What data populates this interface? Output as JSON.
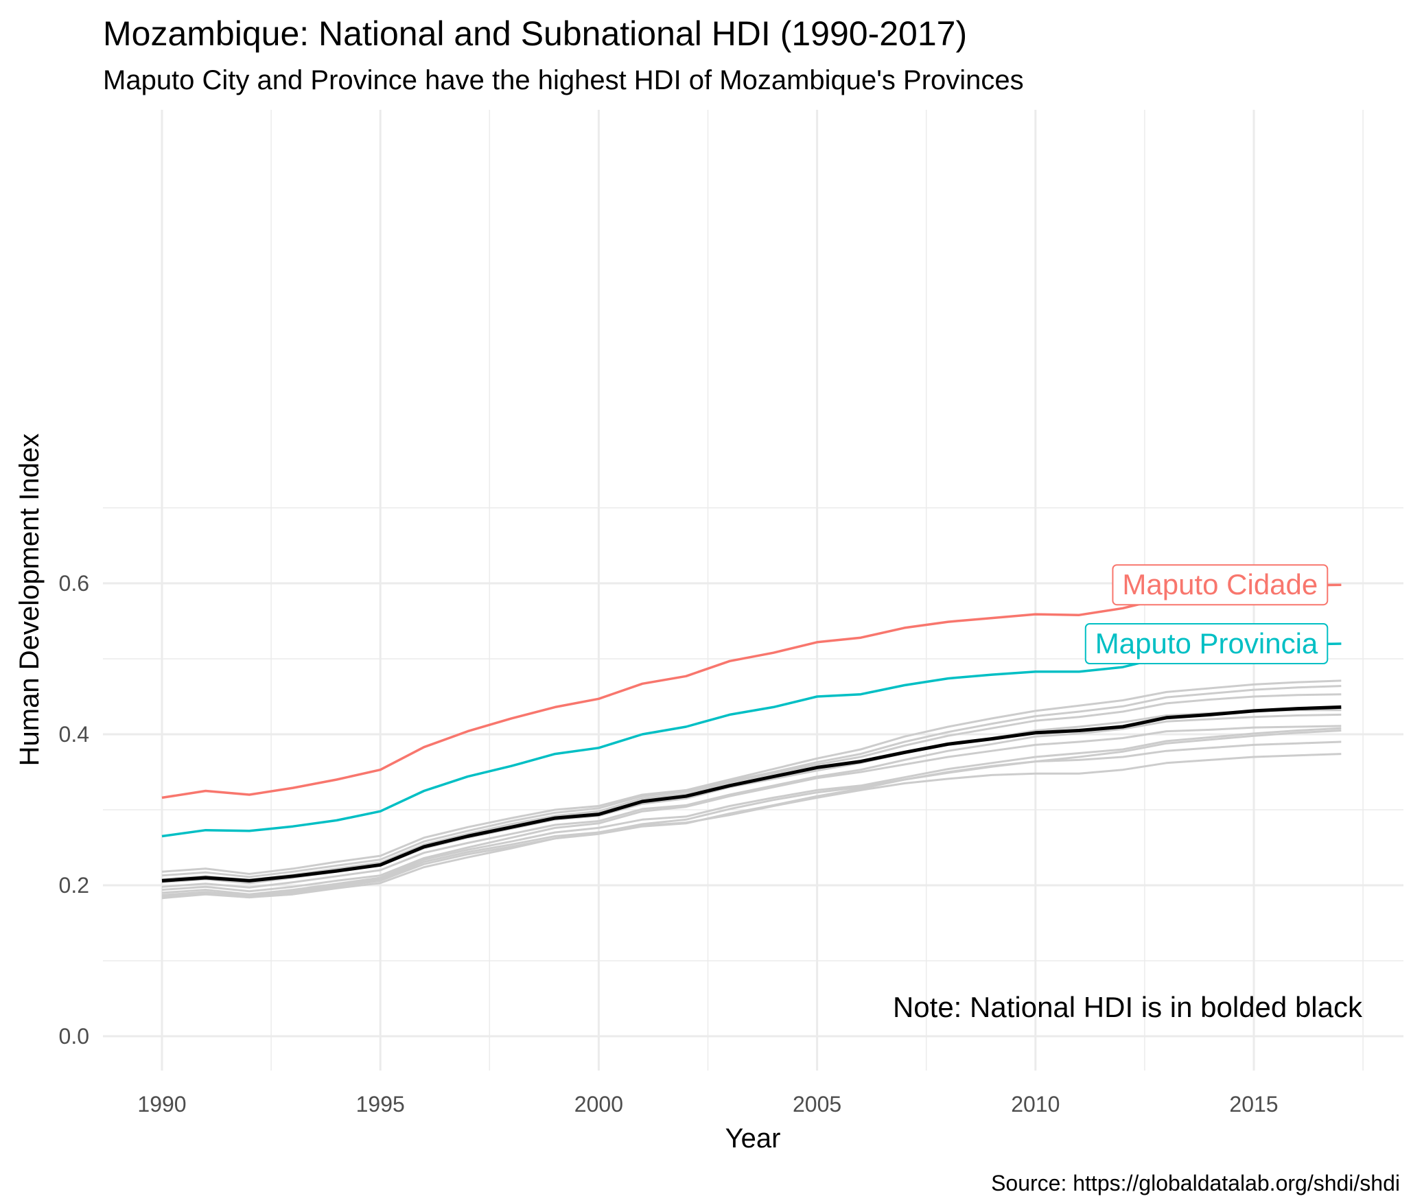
{
  "title": "Mozambique: National and Subnational HDI (1990-2017)",
  "subtitle": "Maputo City and Province have the highest HDI of Mozambique's Provinces",
  "caption": "Source: https://globaldatalab.org/shdi/shdi",
  "note": "Note: National HDI is in bolded black",
  "colors": {
    "cidade": "#F8766D",
    "provincia": "#00BFC4",
    "national": "#000000",
    "other": "#cccccc",
    "grid": "#ebebeb"
  },
  "chart_data": {
    "type": "line",
    "xlabel": "Year",
    "ylabel": "Human Development Index",
    "xlim": [
      1989,
      2018
    ],
    "ylim": [
      0,
      0.7
    ],
    "x_ticks": [
      1990,
      1995,
      2000,
      2005,
      2010,
      2015
    ],
    "x_tick_labels": [
      "1990",
      "1995",
      "2000",
      "2005",
      "2010",
      "2015"
    ],
    "y_ticks": [
      0,
      0.2,
      0.4,
      0.6
    ],
    "y_tick_labels": [
      "0.0",
      "0.2",
      "0.4",
      "0.6"
    ],
    "grid": true,
    "x": [
      1990,
      1991,
      1992,
      1993,
      1994,
      1995,
      1996,
      1997,
      1998,
      1999,
      2000,
      2001,
      2002,
      2003,
      2004,
      2005,
      2006,
      2007,
      2008,
      2009,
      2010,
      2011,
      2012,
      2013,
      2014,
      2015,
      2016,
      2017
    ],
    "series": [
      {
        "name": "Maputo Cidade",
        "role": "highlight",
        "color": "#F8766D",
        "label": "Maputo Cidade",
        "values": [
          0.316,
          0.325,
          0.32,
          0.329,
          0.34,
          0.353,
          0.383,
          0.404,
          0.421,
          0.436,
          0.447,
          0.467,
          0.477,
          0.497,
          0.508,
          0.522,
          0.528,
          0.541,
          0.549,
          0.554,
          0.559,
          0.558,
          0.567,
          0.581,
          0.589,
          0.594,
          0.597,
          0.598
        ]
      },
      {
        "name": "Maputo Provincia",
        "role": "highlight",
        "color": "#00BFC4",
        "label": "Maputo Provincia",
        "values": [
          0.265,
          0.273,
          0.272,
          0.278,
          0.286,
          0.298,
          0.325,
          0.344,
          0.358,
          0.374,
          0.382,
          0.4,
          0.41,
          0.426,
          0.436,
          0.45,
          0.453,
          0.465,
          0.474,
          0.479,
          0.483,
          0.483,
          0.489,
          0.503,
          0.51,
          0.516,
          0.519,
          0.52
        ]
      },
      {
        "name": "National",
        "role": "national",
        "color": "#000000",
        "values": [
          0.206,
          0.21,
          0.206,
          0.212,
          0.219,
          0.227,
          0.251,
          0.265,
          0.277,
          0.289,
          0.294,
          0.311,
          0.318,
          0.332,
          0.344,
          0.356,
          0.364,
          0.376,
          0.387,
          0.394,
          0.402,
          0.405,
          0.41,
          0.422,
          0.426,
          0.431,
          0.434,
          0.436
        ]
      },
      {
        "role": "other",
        "values": [
          0.218,
          0.222,
          0.215,
          0.222,
          0.231,
          0.239,
          0.263,
          0.277,
          0.289,
          0.3,
          0.305,
          0.32,
          0.326,
          0.34,
          0.354,
          0.368,
          0.38,
          0.397,
          0.41,
          0.421,
          0.431,
          0.438,
          0.445,
          0.456,
          0.461,
          0.466,
          0.469,
          0.471
        ]
      },
      {
        "role": "other",
        "values": [
          0.213,
          0.217,
          0.211,
          0.218,
          0.226,
          0.234,
          0.258,
          0.272,
          0.285,
          0.296,
          0.302,
          0.318,
          0.324,
          0.338,
          0.35,
          0.363,
          0.374,
          0.39,
          0.403,
          0.414,
          0.424,
          0.43,
          0.437,
          0.449,
          0.454,
          0.459,
          0.462,
          0.464
        ]
      },
      {
        "role": "other",
        "values": [
          0.208,
          0.212,
          0.207,
          0.214,
          0.222,
          0.23,
          0.254,
          0.268,
          0.281,
          0.292,
          0.298,
          0.315,
          0.321,
          0.336,
          0.348,
          0.36,
          0.37,
          0.385,
          0.398,
          0.408,
          0.418,
          0.423,
          0.43,
          0.441,
          0.446,
          0.45,
          0.452,
          0.453
        ]
      },
      {
        "role": "other",
        "values": [
          0.204,
          0.208,
          0.203,
          0.21,
          0.218,
          0.226,
          0.249,
          0.263,
          0.275,
          0.287,
          0.292,
          0.308,
          0.315,
          0.33,
          0.341,
          0.352,
          0.362,
          0.375,
          0.386,
          0.395,
          0.405,
          0.41,
          0.416,
          0.425,
          0.428,
          0.431,
          0.432,
          0.432
        ]
      },
      {
        "role": "other",
        "values": [
          0.198,
          0.202,
          0.197,
          0.204,
          0.212,
          0.22,
          0.243,
          0.256,
          0.268,
          0.28,
          0.285,
          0.301,
          0.306,
          0.32,
          0.332,
          0.344,
          0.353,
          0.366,
          0.378,
          0.387,
          0.397,
          0.401,
          0.407,
          0.417,
          0.42,
          0.423,
          0.425,
          0.426
        ]
      },
      {
        "role": "other",
        "values": [
          0.194,
          0.198,
          0.192,
          0.198,
          0.206,
          0.213,
          0.236,
          0.25,
          0.263,
          0.276,
          0.282,
          0.298,
          0.304,
          0.318,
          0.33,
          0.342,
          0.35,
          0.36,
          0.37,
          0.378,
          0.386,
          0.39,
          0.395,
          0.404,
          0.406,
          0.409,
          0.41,
          0.411
        ]
      },
      {
        "role": "other",
        "values": [
          0.19,
          0.194,
          0.188,
          0.194,
          0.202,
          0.21,
          0.234,
          0.247,
          0.258,
          0.27,
          0.276,
          0.287,
          0.291,
          0.305,
          0.316,
          0.326,
          0.332,
          0.343,
          0.354,
          0.362,
          0.37,
          0.375,
          0.38,
          0.391,
          0.396,
          0.401,
          0.405,
          0.408
        ]
      },
      {
        "role": "other",
        "values": [
          0.187,
          0.191,
          0.186,
          0.192,
          0.2,
          0.208,
          0.231,
          0.244,
          0.254,
          0.265,
          0.27,
          0.281,
          0.287,
          0.301,
          0.313,
          0.323,
          0.33,
          0.34,
          0.349,
          0.357,
          0.364,
          0.37,
          0.377,
          0.388,
          0.393,
          0.398,
          0.402,
          0.405
        ]
      },
      {
        "role": "other",
        "values": [
          0.185,
          0.189,
          0.184,
          0.19,
          0.198,
          0.206,
          0.228,
          0.241,
          0.251,
          0.262,
          0.268,
          0.278,
          0.282,
          0.295,
          0.306,
          0.318,
          0.328,
          0.34,
          0.35,
          0.358,
          0.364,
          0.366,
          0.37,
          0.378,
          0.382,
          0.386,
          0.388,
          0.39
        ]
      },
      {
        "role": "other",
        "values": [
          0.183,
          0.188,
          0.184,
          0.188,
          0.196,
          0.203,
          0.224,
          0.237,
          0.249,
          0.262,
          0.27,
          0.279,
          0.283,
          0.293,
          0.305,
          0.316,
          0.326,
          0.335,
          0.341,
          0.346,
          0.348,
          0.348,
          0.353,
          0.362,
          0.366,
          0.37,
          0.372,
          0.374
        ]
      }
    ]
  }
}
